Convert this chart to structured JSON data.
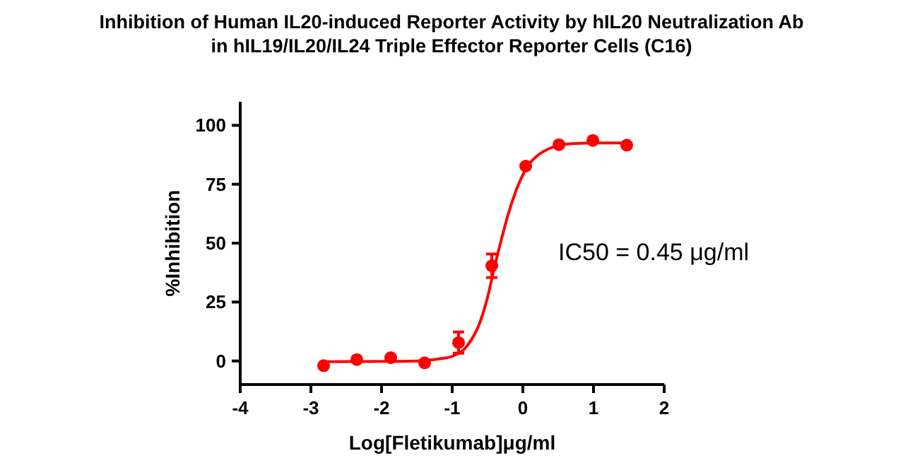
{
  "chart_data": {
    "type": "scatter",
    "title": "Inhibition of Human IL20-induced Reporter Activity  by hIL20 Neutralization Ab\nin hIL19/IL20/IL24 Triple Effector Reporter Cells (C16)",
    "xlabel": "Log[Fletikumab]μg/ml",
    "ylabel": "%Inhibition",
    "xlim": [
      -4,
      2
    ],
    "xticks": [
      -4,
      -3,
      -2,
      -1,
      0,
      1,
      2
    ],
    "ylim": [
      -10,
      110
    ],
    "yticks": [
      0,
      25,
      50,
      75,
      100
    ],
    "grid": false,
    "marker": "circle",
    "annotations": [
      "IC50 = 0.45 μg/ml"
    ],
    "series": [
      {
        "color": "#ff0000",
        "x": [
          -2.82,
          -2.35,
          -1.87,
          -1.39,
          -0.91,
          -0.44,
          0.04,
          0.51,
          0.99,
          1.47
        ],
        "values": [
          -2,
          0.6,
          1.4,
          -0.8,
          7.8,
          40.4,
          82.7,
          91.8,
          93.6,
          91.6
        ],
        "errors": [
          null,
          null,
          null,
          null,
          4.5,
          5,
          null,
          null,
          null,
          null
        ]
      },
      {
        "type": "line",
        "color": "#ff0000",
        "marker": "none",
        "x": [
          -2.82,
          -2.0,
          -1.5,
          -1.2,
          -1.0,
          -0.8,
          -0.6,
          -0.5,
          -0.4,
          -0.3,
          -0.2,
          -0.1,
          0,
          0.1,
          0.2,
          0.4,
          0.6,
          0.8,
          1.0,
          1.47
        ],
        "values": [
          -0.3,
          -0.2,
          0,
          0.8,
          2,
          6,
          17,
          27,
          40,
          52,
          63,
          72,
          79,
          84,
          87,
          90.5,
          92,
          92.4,
          92.5,
          92.5
        ]
      }
    ]
  }
}
